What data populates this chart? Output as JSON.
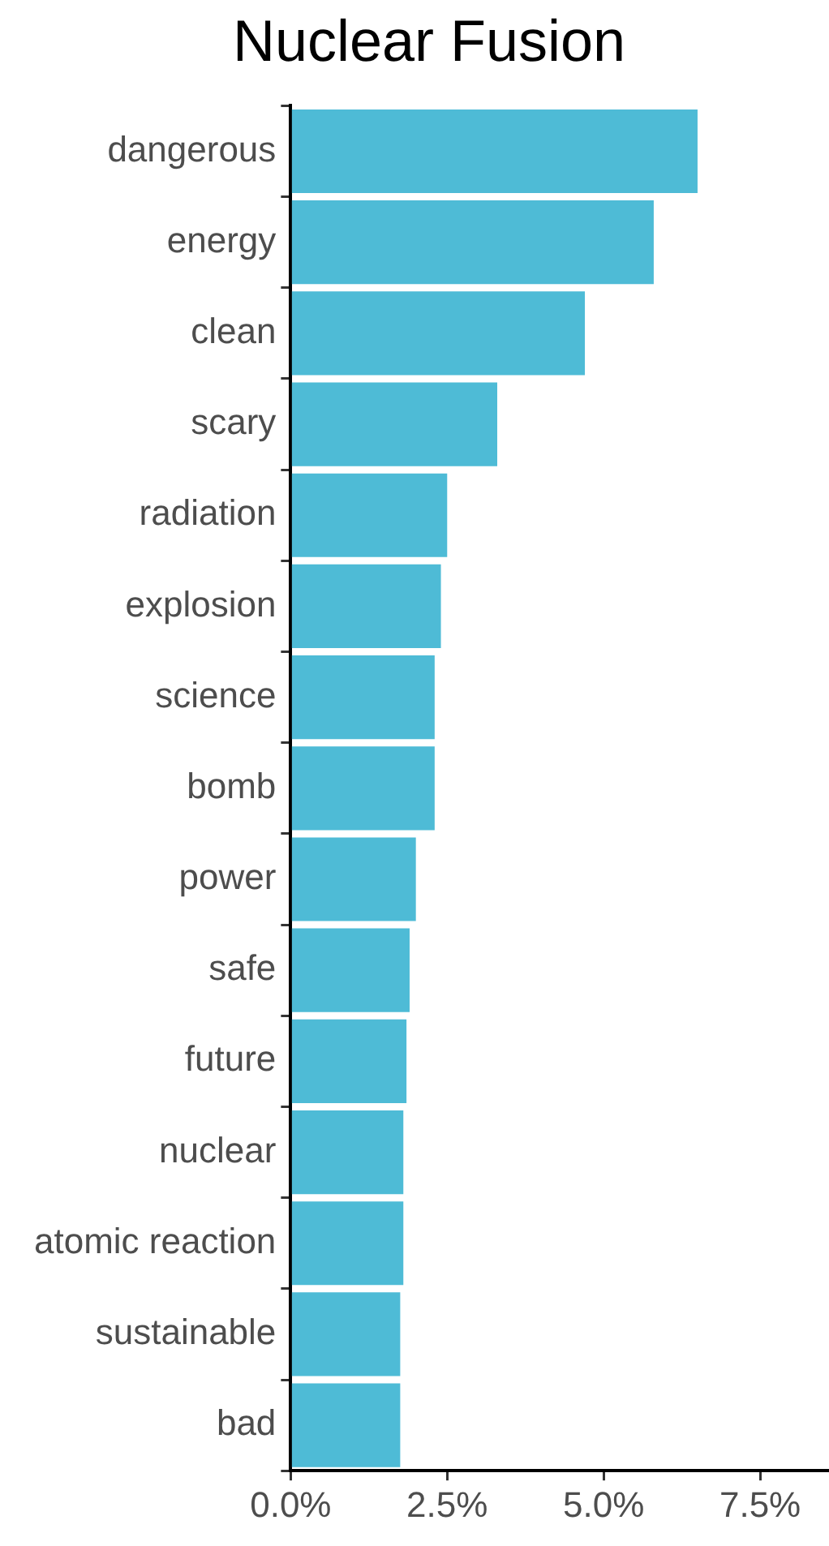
{
  "chart_data": {
    "type": "bar",
    "title": "Nuclear Fusion",
    "orientation": "horizontal",
    "categories": [
      "dangerous",
      "energy",
      "clean",
      "scary",
      "radiation",
      "explosion",
      "science",
      "bomb",
      "power",
      "safe",
      "future",
      "nuclear",
      "atomic reaction",
      "sustainable",
      "bad"
    ],
    "values": [
      6.5,
      5.8,
      4.7,
      3.3,
      2.5,
      2.4,
      2.3,
      2.3,
      2.0,
      1.9,
      1.85,
      1.8,
      1.8,
      1.75,
      1.75
    ],
    "color": "#4ebbd6",
    "xlim": [
      0,
      8.6
    ],
    "xticks": [
      {
        "value": 0,
        "label": "0.0%"
      },
      {
        "value": 2.5,
        "label": "2.5%"
      },
      {
        "value": 5,
        "label": "5.0%"
      },
      {
        "value": 7.5,
        "label": "7.5%"
      }
    ],
    "grid": false,
    "legend": false
  }
}
